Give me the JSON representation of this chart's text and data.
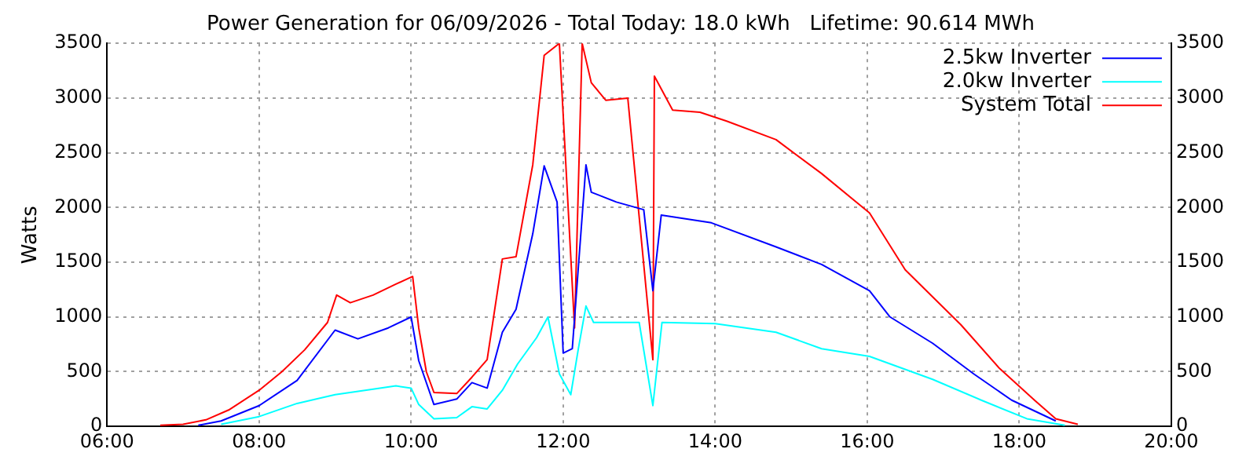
{
  "chart_data": {
    "type": "line",
    "title": "Power Generation for 06/09/2026 - Total Today: 18.0 kWh   Lifetime: 90.614 MWh",
    "ylabel": "Watts",
    "xlim": [
      6,
      20
    ],
    "xticks": [
      {
        "value": 6,
        "label": "06:00"
      },
      {
        "value": 8,
        "label": "08:00"
      },
      {
        "value": 10,
        "label": "10:00"
      },
      {
        "value": 12,
        "label": "12:00"
      },
      {
        "value": 14,
        "label": "14:00"
      },
      {
        "value": 16,
        "label": "16:00"
      },
      {
        "value": 18,
        "label": "18:00"
      },
      {
        "value": 20,
        "label": "20:00"
      }
    ],
    "ylim": [
      0,
      3500
    ],
    "yticks": [
      0,
      500,
      1000,
      1500,
      2000,
      2500,
      3000,
      3500
    ],
    "y2lim": [
      0,
      3500
    ],
    "y2ticks": [
      0,
      500,
      1000,
      1500,
      2000,
      2500,
      3000,
      3500
    ],
    "grid": true,
    "legend": "top right",
    "marker": "none",
    "line_style": "solid",
    "series": [
      {
        "name": "2.5kw Inverter",
        "color": "#0000ff",
        "x": [
          7.2,
          7.5,
          8.0,
          8.5,
          9.0,
          9.3,
          9.7,
          10.0,
          10.1,
          10.3,
          10.6,
          10.8,
          11.0,
          11.2,
          11.38,
          11.6,
          11.75,
          11.92,
          12.0,
          12.12,
          12.3,
          12.37,
          12.7,
          13.06,
          13.18,
          13.29,
          13.95,
          14.8,
          15.4,
          16.03,
          16.3,
          16.86,
          17.4,
          17.9,
          18.48
        ],
        "values": [
          10,
          50,
          190,
          420,
          880,
          800,
          900,
          1000,
          600,
          200,
          250,
          400,
          350,
          860,
          1070,
          1760,
          2380,
          2050,
          670,
          710,
          2390,
          2140,
          2050,
          1980,
          1240,
          1930,
          1860,
          1640,
          1480,
          1240,
          1000,
          760,
          480,
          240,
          50
        ]
      },
      {
        "name": "2.0kw Inverter",
        "color": "#00ffff",
        "x": [
          7.5,
          8.0,
          8.5,
          9.0,
          9.5,
          9.8,
          10.0,
          10.1,
          10.3,
          10.6,
          10.8,
          11.0,
          11.2,
          11.4,
          11.65,
          11.8,
          11.95,
          12.1,
          12.2,
          12.3,
          12.4,
          13.0,
          13.18,
          13.3,
          14.0,
          14.8,
          15.4,
          16.03,
          16.86,
          17.5,
          18.1,
          18.6
        ],
        "values": [
          20,
          90,
          210,
          290,
          340,
          370,
          350,
          200,
          70,
          80,
          180,
          160,
          330,
          570,
          810,
          1000,
          480,
          290,
          710,
          1100,
          950,
          950,
          190,
          950,
          940,
          860,
          710,
          640,
          430,
          240,
          70,
          10
        ]
      },
      {
        "name": "System Total",
        "color": "#ff0000",
        "x": [
          6.7,
          7.0,
          7.3,
          7.6,
          8.0,
          8.3,
          8.6,
          8.9,
          9.02,
          9.2,
          9.5,
          9.8,
          10.02,
          10.1,
          10.2,
          10.3,
          10.6,
          10.8,
          11.0,
          11.2,
          11.38,
          11.6,
          11.75,
          11.95,
          12.15,
          12.25,
          12.37,
          12.56,
          12.85,
          13.18,
          13.2,
          13.44,
          13.8,
          14.15,
          14.8,
          15.4,
          16.03,
          16.5,
          17.23,
          17.74,
          18.2,
          18.48,
          18.77
        ],
        "values": [
          10,
          20,
          60,
          150,
          330,
          500,
          700,
          950,
          1200,
          1130,
          1200,
          1300,
          1370,
          900,
          500,
          310,
          300,
          450,
          610,
          1530,
          1550,
          2390,
          3390,
          3500,
          900,
          3500,
          3140,
          2980,
          3000,
          610,
          3200,
          2890,
          2870,
          2790,
          2620,
          2310,
          1950,
          1430,
          930,
          530,
          240,
          70,
          20
        ]
      }
    ]
  }
}
